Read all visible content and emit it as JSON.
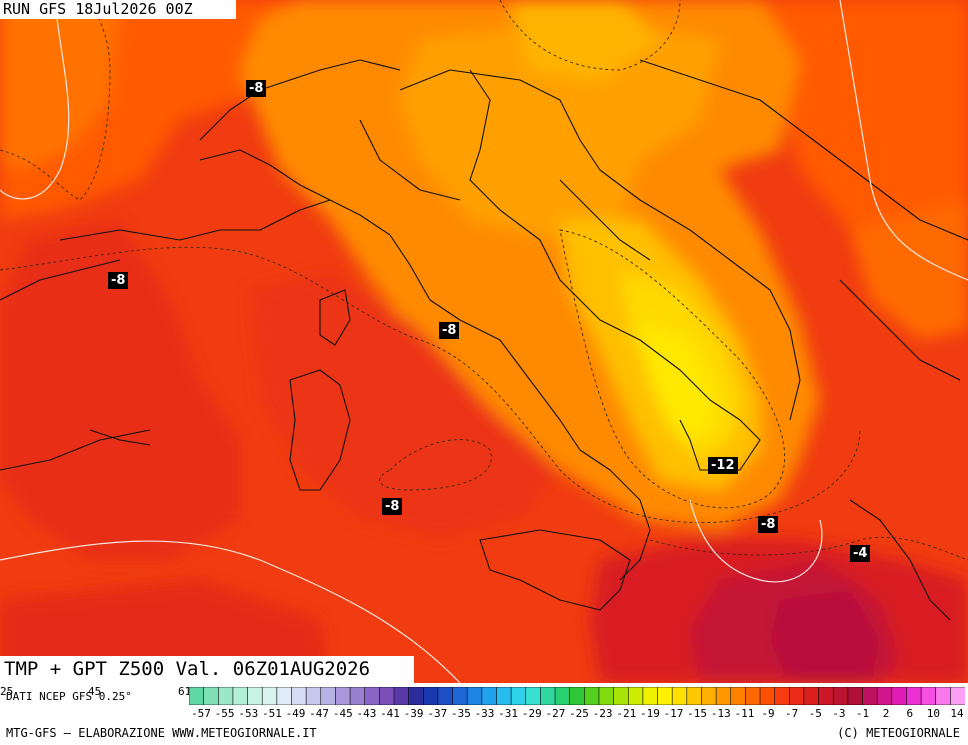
{
  "run_label": "RUN GFS 18Jul2026 00Z",
  "variable_label": "TMP + GPT Z500 Val. 06Z01AUG2026",
  "data_source": "DATI NCEP GFS 0.25°",
  "edge_numbers": [
    "25",
    "45",
    "61"
  ],
  "footer_left": "MTG-GFS — ELABORAZIONE WWW.METEOGIORNALE.IT",
  "footer_right": "(C) METEOGIORNALE",
  "isotherm_labels": [
    {
      "text": "-8",
      "region": "north-west"
    },
    {
      "text": "-8",
      "region": "west"
    },
    {
      "text": "-8",
      "region": "tyrrhenian-north"
    },
    {
      "text": "-8",
      "region": "tyrrhenian-south"
    },
    {
      "text": "-12",
      "region": "apulia"
    },
    {
      "text": "-8",
      "region": "ionian"
    },
    {
      "text": "-4",
      "region": "greece"
    }
  ],
  "colorbar_ticks": [
    "-57",
    "-55",
    "-53",
    "-51",
    "-49",
    "-47",
    "-45",
    "-43",
    "-41",
    "-39",
    "-37",
    "-35",
    "-33",
    "-31",
    "-29",
    "-27",
    "-25",
    "-23",
    "-21",
    "-19",
    "-17",
    "-15",
    "-13",
    "-11",
    "-9",
    "-7",
    "-5",
    "-3",
    "-1",
    "2",
    "6",
    "10",
    "14"
  ],
  "colorbar_colors": [
    "#5fd6a4",
    "#7ee0b4",
    "#9ae8c6",
    "#b3efd6",
    "#c8f2e4",
    "#d9f4ef",
    "#e2ecf8",
    "#d6dcf4",
    "#c8c8ee",
    "#b8b2e6",
    "#a998dc",
    "#9a80d0",
    "#8a66c4",
    "#7a50b8",
    "#5a3aa8",
    "#2c2c9c",
    "#1a38b0",
    "#1c4ec4",
    "#1e68d6",
    "#1e86e2",
    "#22a2ea",
    "#28bcee",
    "#30d2ea",
    "#38e0d2",
    "#30d8a0",
    "#28d070",
    "#30c838",
    "#56d020",
    "#80dc10",
    "#a8e408",
    "#ccec00",
    "#eef000",
    "#fff200",
    "#ffe000",
    "#ffc800",
    "#ffb000",
    "#ff9800",
    "#ff8200",
    "#ff6a00",
    "#ff5000",
    "#f83c10",
    "#ea2c18",
    "#dc2020",
    "#cc1828",
    "#bc1430",
    "#b01038",
    "#c01060",
    "#d0148c",
    "#e01cb4",
    "#ee30d2",
    "#f650e2",
    "#fa78ee",
    "#fca0f4"
  ],
  "legend_colors": {
    "coldest": "#b80f3c",
    "cold": "#e02a10",
    "mid": "#ff5a00",
    "warm": "#ff8a00",
    "warmer": "#ffa800",
    "yellow": "#ffd000",
    "core": "#ffe800"
  }
}
